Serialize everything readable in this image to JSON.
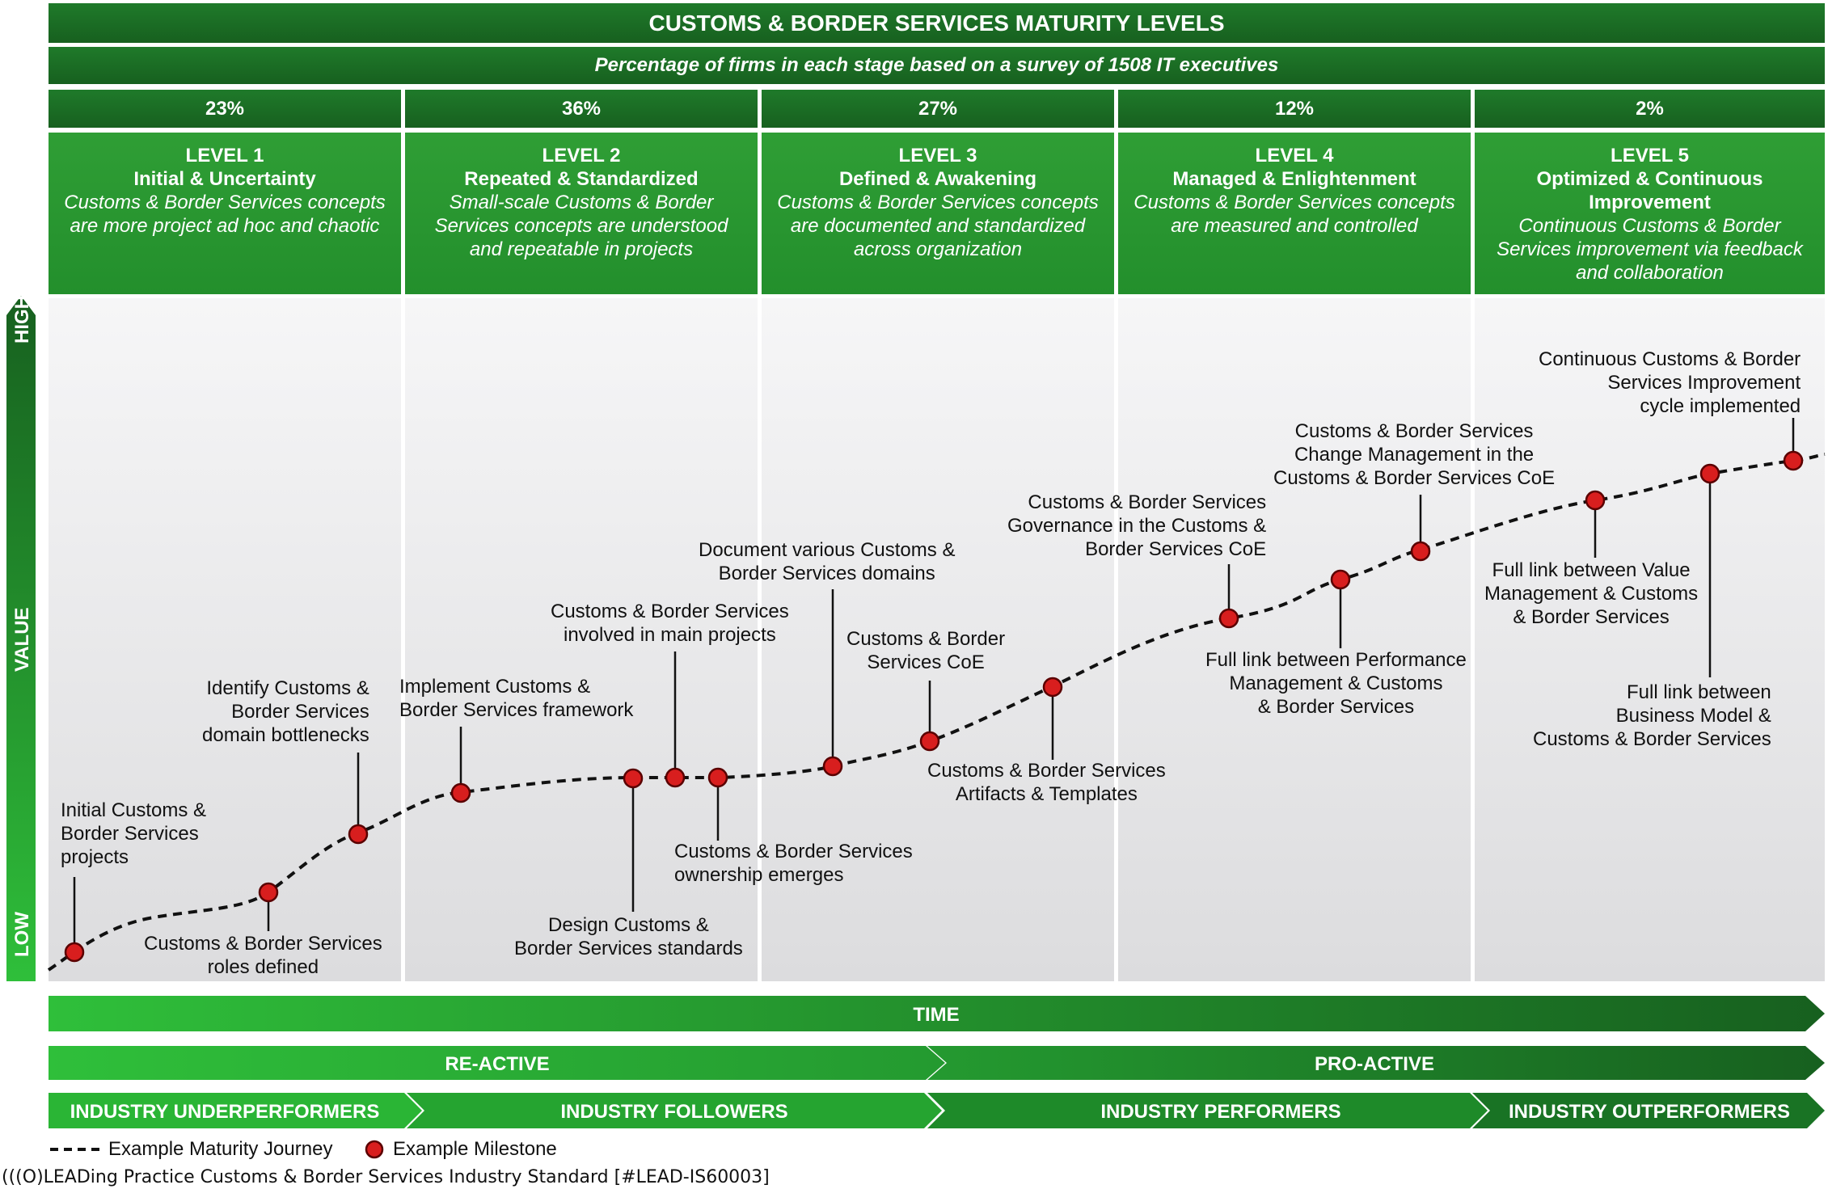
{
  "title": "CUSTOMS & BORDER SERVICES MATURITY LEVELS",
  "subtitle": "Percentage of firms in each stage based on a survey of 1508 IT executives",
  "levels": [
    {
      "pct": "23%",
      "title": "LEVEL 1",
      "name": "Initial & Uncertainty",
      "desc1": "Customs & Border Services concepts",
      "desc2": "are more project ad hoc and chaotic",
      "desc3": ""
    },
    {
      "pct": "36%",
      "title": "LEVEL 2",
      "name": "Repeated & Standardized",
      "desc1": "Small-scale Customs & Border",
      "desc2": "Services concepts are understood",
      "desc3": "and repeatable in projects"
    },
    {
      "pct": "27%",
      "title": "LEVEL 3",
      "name": "Defined & Awakening",
      "desc1": "Customs & Border Services concepts",
      "desc2": "are documented and standardized",
      "desc3": "across organization"
    },
    {
      "pct": "12%",
      "title": "LEVEL 4",
      "name": "Managed & Enlightenment",
      "desc1": "Customs & Border Services concepts",
      "desc2": "are measured and controlled",
      "desc3": ""
    },
    {
      "pct": "2%",
      "title": "LEVEL 5",
      "name1": "Optimized & Continuous",
      "name2": "Improvement",
      "desc1": "Continuous Customs & Border",
      "desc2": "Services improvement via feedback",
      "desc3": "and collaboration"
    }
  ],
  "axis": {
    "high": "HIGH",
    "value": "VALUE",
    "low": "LOW"
  },
  "milestones": [
    {
      "lines": [
        "Initial Customs &",
        "Border Services",
        "projects"
      ]
    },
    {
      "lines": [
        "Customs & Border Services",
        "roles defined"
      ]
    },
    {
      "lines": [
        "Identify Customs &",
        "Border Services",
        "domain bottlenecks"
      ]
    },
    {
      "lines": [
        "Implement Customs &",
        "Border Services framework"
      ]
    },
    {
      "lines": [
        "Design Customs &",
        "Border Services standards"
      ]
    },
    {
      "lines": [
        "Customs & Border Services",
        "involved  in main projects"
      ]
    },
    {
      "lines": [
        "Customs & Border Services",
        "ownership emerges"
      ]
    },
    {
      "lines": [
        "Document various Customs &",
        "Border Services domains"
      ]
    },
    {
      "lines": [
        "Customs & Border",
        "Services CoE"
      ]
    },
    {
      "lines": [
        "Customs & Border Services",
        "Artifacts & Templates"
      ]
    },
    {
      "lines": [
        "Customs & Border Services",
        "Governance in the Customs &",
        "Border Services CoE"
      ]
    },
    {
      "lines": [
        "Full link between Performance",
        "Management & Customs",
        "& Border Services"
      ]
    },
    {
      "lines": [
        "Customs & Border Services",
        "Change Management in the",
        "Customs & Border Services CoE"
      ]
    },
    {
      "lines": [
        "Full link between Value",
        "Management & Customs",
        "& Border Services"
      ]
    },
    {
      "lines": [
        "Full link between",
        "Business Model &",
        "Customs & Border Services"
      ]
    },
    {
      "lines": [
        "Continuous Customs & Border",
        "Services Improvement",
        "cycle implemented"
      ]
    }
  ],
  "bands": {
    "time": "TIME",
    "reactive": "RE-ACTIVE",
    "proactive": "PRO-ACTIVE",
    "underperformers": "INDUSTRY UNDERPERFORMERS",
    "followers": "INDUSTRY FOLLOWERS",
    "performers": "INDUSTRY PERFORMERS",
    "outperformers": "INDUSTRY OUTPERFORMERS"
  },
  "legend": {
    "journey": "Example Maturity Journey",
    "milestone": "Example Milestone"
  },
  "footer": "(((O)LEADing Practice Customs & Border Services Industry Standard [#LEAD-IS60003]",
  "colors": {
    "dark_green": "#17601f",
    "mid_green": "#238f2c",
    "light_green": "#2fbf3a",
    "milestone_red": "#d81e1e"
  }
}
